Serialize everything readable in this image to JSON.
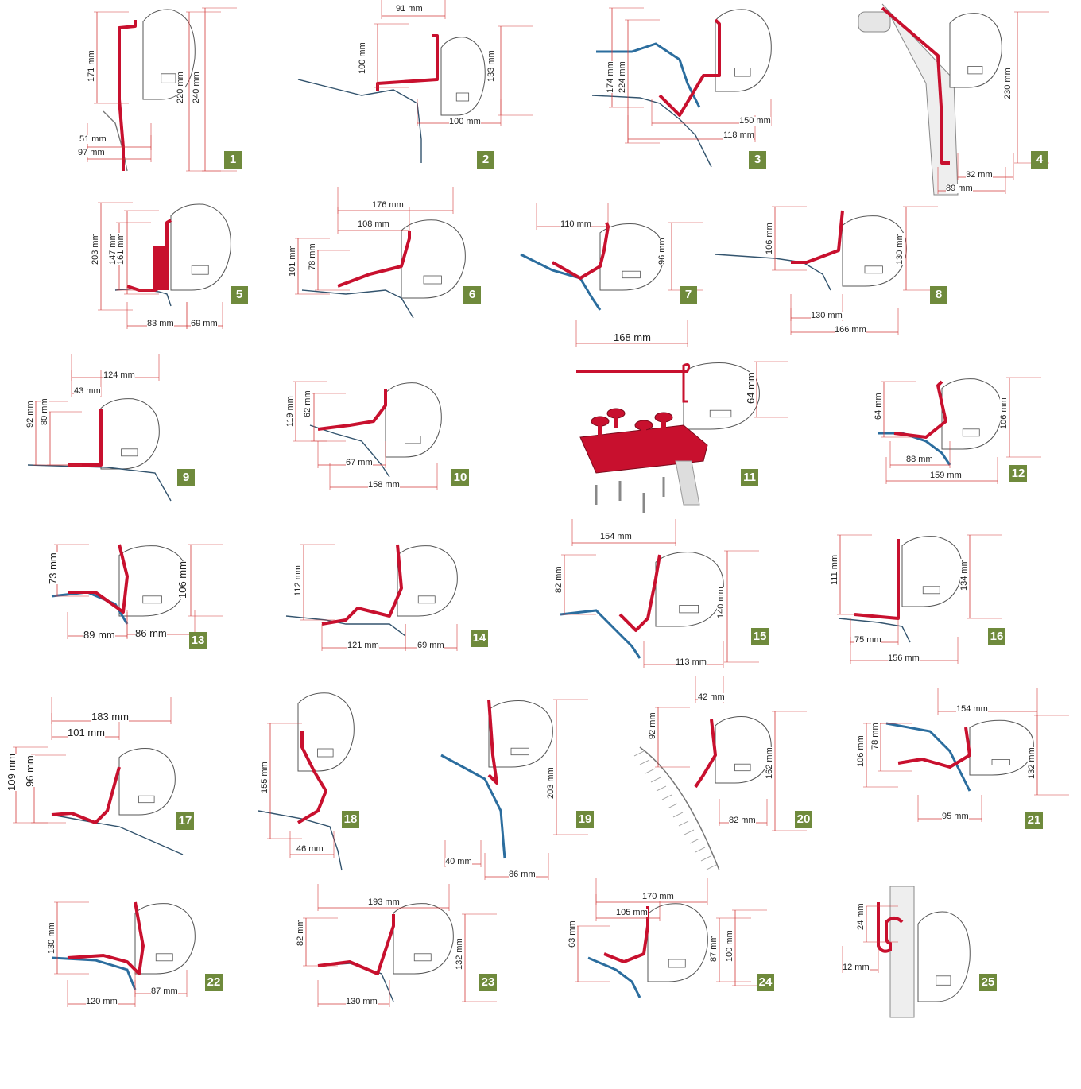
{
  "colors": {
    "bracket": "#c8102e",
    "roof": "#2b6d9e",
    "awning_outline": "#555555",
    "badge": "#6f8a3c",
    "dimension": "#d23a3a"
  },
  "diagrams": [
    {
      "number": "1",
      "dims": [
        "171 mm",
        "220 mm",
        "240 mm",
        "51 mm",
        "97 mm"
      ]
    },
    {
      "number": "2",
      "dims": [
        "91 mm",
        "100 mm",
        "133 mm",
        "100 mm"
      ]
    },
    {
      "number": "3",
      "dims": [
        "174 mm",
        "224 mm",
        "150 mm",
        "118 mm"
      ]
    },
    {
      "number": "4",
      "dims": [
        "230 mm",
        "32 mm",
        "89 mm"
      ]
    },
    {
      "number": "5",
      "dims": [
        "203 mm",
        "147 mm",
        "161 mm",
        "83 mm",
        "69 mm"
      ]
    },
    {
      "number": "6",
      "dims": [
        "176 mm",
        "108 mm",
        "101 mm",
        "78 mm"
      ]
    },
    {
      "number": "7",
      "dims": [
        "110 mm",
        "96 mm"
      ]
    },
    {
      "number": "8",
      "dims": [
        "106 mm",
        "130 mm",
        "130 mm",
        "166 mm"
      ]
    },
    {
      "number": "9",
      "dims": [
        "124 mm",
        "43 mm",
        "92 mm",
        "80 mm"
      ]
    },
    {
      "number": "10",
      "dims": [
        "119 mm",
        "62 mm",
        "67 mm",
        "158 mm"
      ]
    },
    {
      "number": "11",
      "dims": [
        "168 mm",
        "64 mm"
      ]
    },
    {
      "number": "12",
      "dims": [
        "64 mm",
        "106 mm",
        "88 mm",
        "159 mm"
      ]
    },
    {
      "number": "13",
      "dims": [
        "73 mm",
        "106 mm",
        "89 mm",
        "86 mm"
      ]
    },
    {
      "number": "14",
      "dims": [
        "112 mm",
        "121 mm",
        "69 mm"
      ]
    },
    {
      "number": "15",
      "dims": [
        "154 mm",
        "82 mm",
        "140 mm",
        "113 mm"
      ]
    },
    {
      "number": "16",
      "dims": [
        "111 mm",
        "134 mm",
        "75 mm",
        "156 mm"
      ]
    },
    {
      "number": "17",
      "dims": [
        "183 mm",
        "101 mm",
        "109 mm",
        "96 mm"
      ]
    },
    {
      "number": "18",
      "dims": [
        "155 mm",
        "46 mm"
      ]
    },
    {
      "number": "19",
      "dims": [
        "203 mm",
        "40 mm",
        "86 mm"
      ]
    },
    {
      "number": "20",
      "dims": [
        "42 mm",
        "92 mm",
        "162 mm",
        "82 mm"
      ]
    },
    {
      "number": "21",
      "dims": [
        "154 mm",
        "106 mm",
        "78 mm",
        "132 mm",
        "95 mm"
      ]
    },
    {
      "number": "22",
      "dims": [
        "130 mm",
        "120 mm",
        "87 mm"
      ]
    },
    {
      "number": "23",
      "dims": [
        "193 mm",
        "82 mm",
        "132 mm",
        "130 mm"
      ]
    },
    {
      "number": "24",
      "dims": [
        "170 mm",
        "105 mm",
        "63 mm",
        "87 mm",
        "100 mm"
      ]
    },
    {
      "number": "25",
      "dims": [
        "24 mm",
        "12 mm"
      ]
    }
  ]
}
